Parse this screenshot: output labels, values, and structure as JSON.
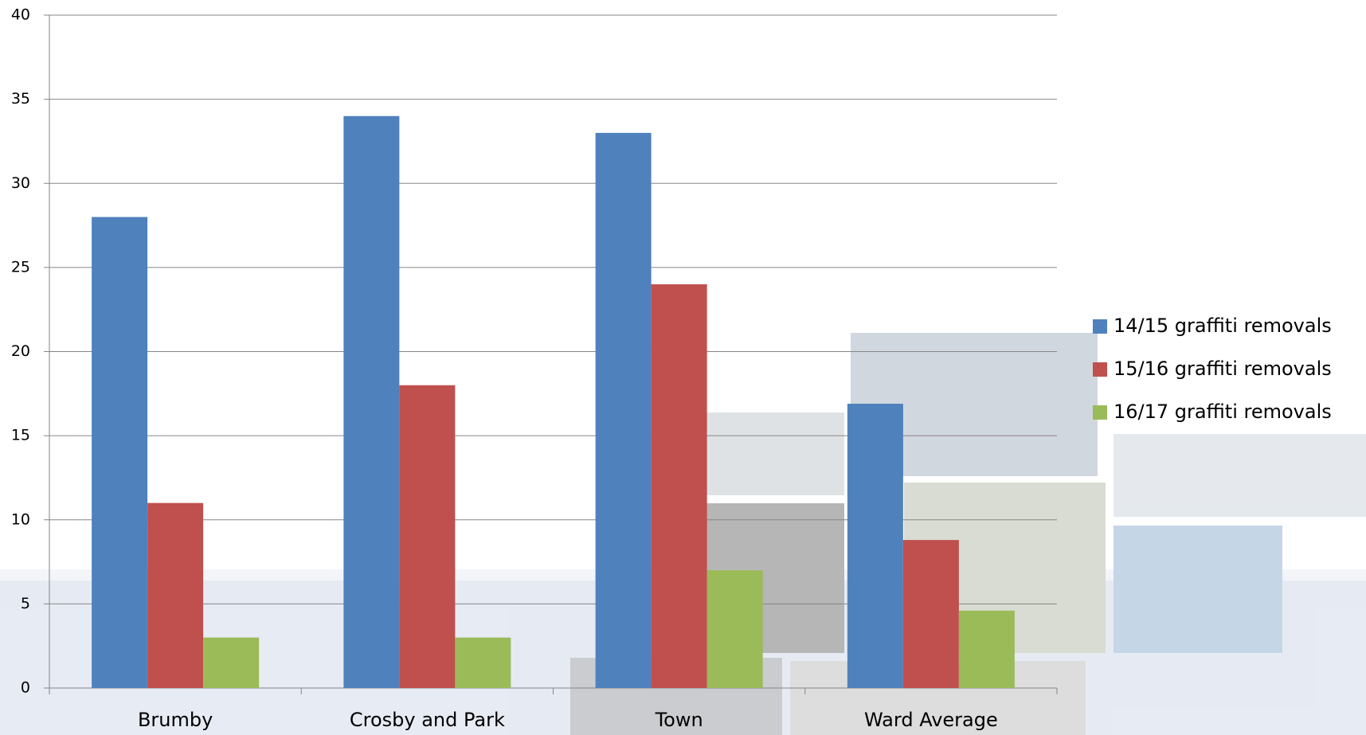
{
  "chart_data": {
    "type": "bar",
    "categories": [
      "Brumby",
      "Crosby and Park",
      "Town",
      "Ward Average"
    ],
    "series": [
      {
        "name": "14/15 graffiti removals",
        "color": "#4f81bd",
        "values": [
          28,
          34,
          33,
          16.9
        ]
      },
      {
        "name": "15/16 graffiti removals",
        "color": "#c0504d",
        "values": [
          11,
          18,
          24,
          8.8
        ]
      },
      {
        "name": "16/17 graffiti removals",
        "color": "#9bbb59",
        "values": [
          3,
          3,
          7,
          4.6
        ]
      }
    ],
    "ylim": [
      0,
      40
    ],
    "yticks": [
      0,
      5,
      10,
      15,
      20,
      25,
      30,
      35,
      40
    ],
    "grid": true,
    "legend": "right"
  }
}
